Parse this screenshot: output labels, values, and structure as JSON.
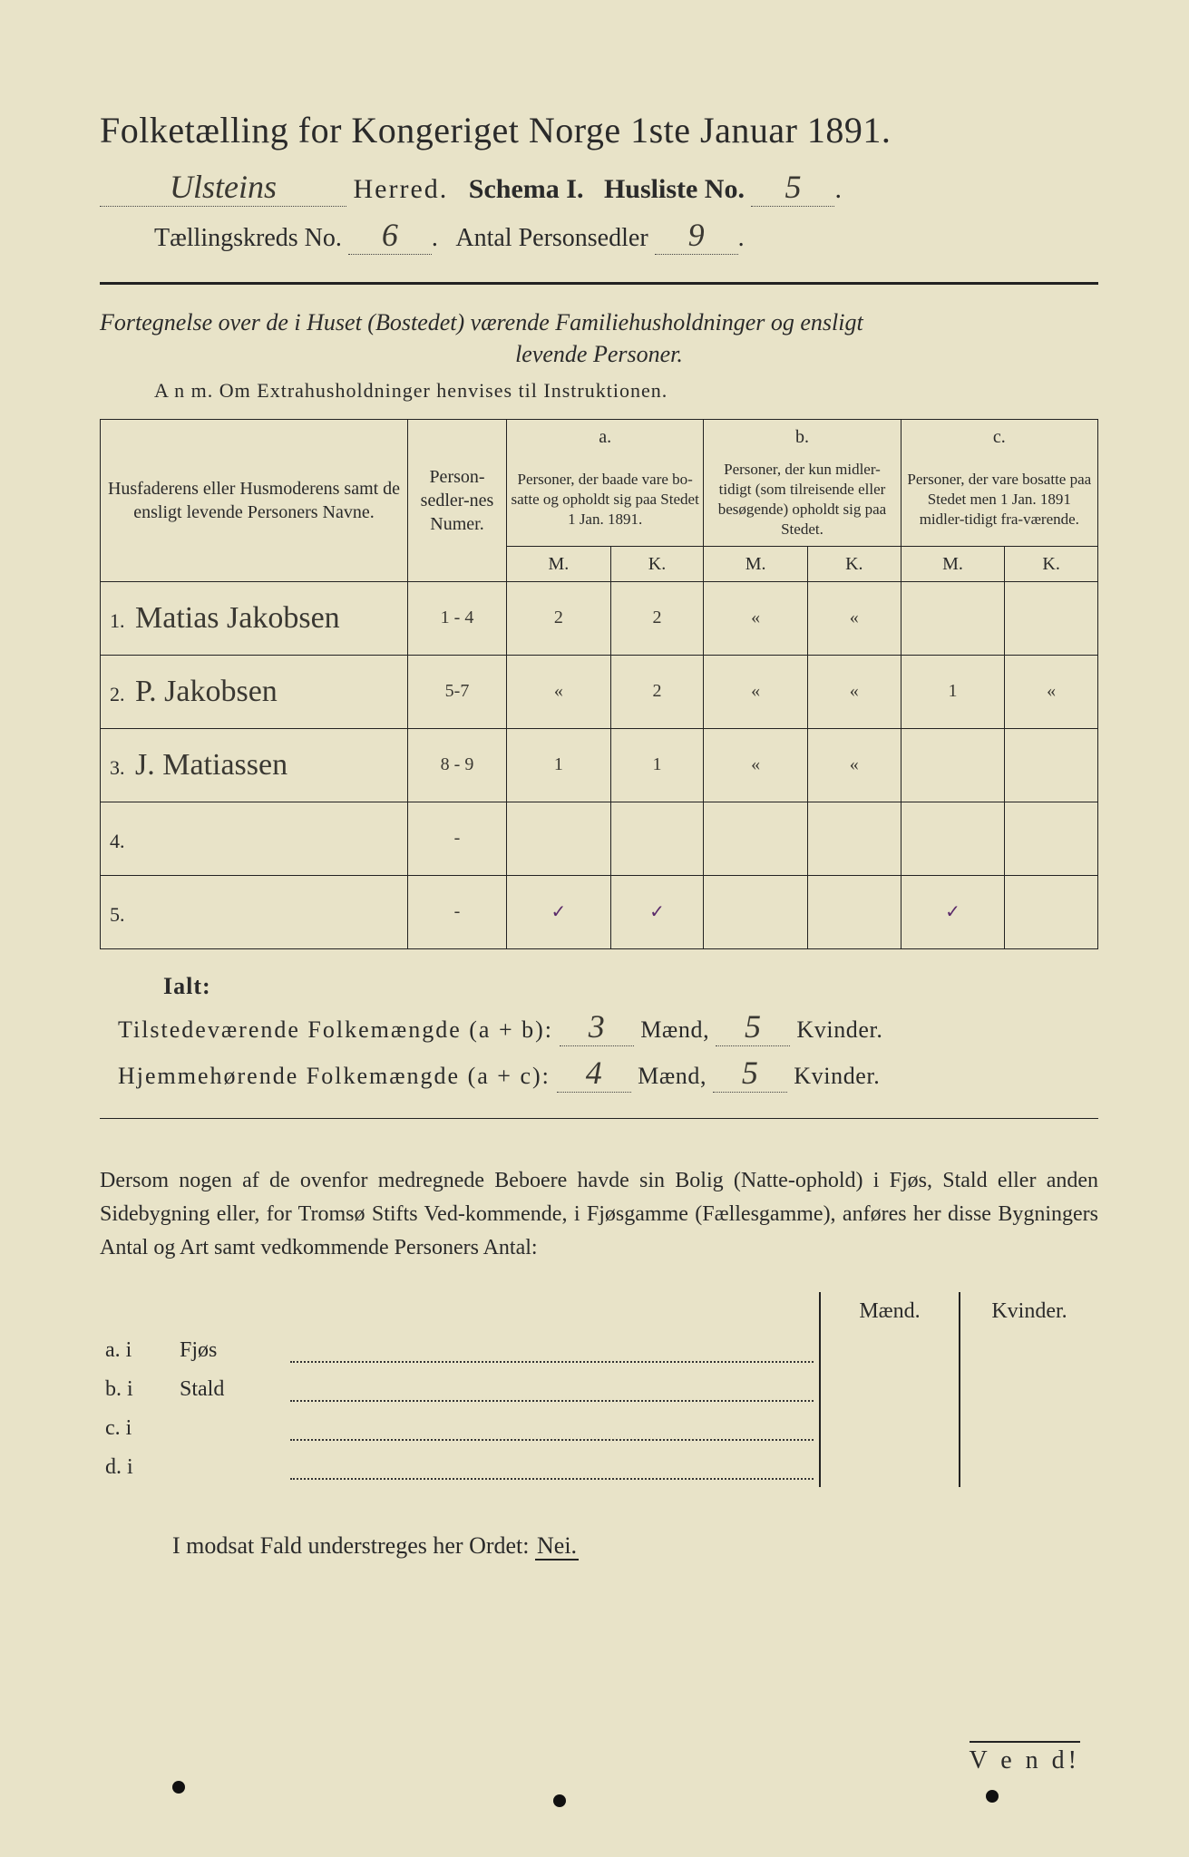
{
  "header": {
    "title": "Folketælling for Kongeriget Norge 1ste Januar 1891.",
    "herred_value": "Ulsteins",
    "herred_label": "Herred.",
    "schema_label": "Schema I.",
    "husliste_label": "Husliste No.",
    "husliste_no": "5",
    "kreds_label": "Tællingskreds No.",
    "kreds_no": "6",
    "personsedler_label": "Antal Personsedler",
    "personsedler_no": "9"
  },
  "fortegnelse": {
    "line1": "Fortegnelse over de i Huset (Bostedet) værende Familiehusholdninger og ensligt",
    "line2": "levende Personer.",
    "anm": "A n m.   Om Extrahusholdninger henvises til Instruktionen."
  },
  "table_head": {
    "col_name": "Husfaderens eller Husmoderens samt de ensligt levende Personers Navne.",
    "col_numer": "Person-sedler-nes Numer.",
    "a_top": "a.",
    "a_text": "Personer, der baade vare bo-satte og opholdt sig paa Stedet 1 Jan. 1891.",
    "b_top": "b.",
    "b_text": "Personer, der kun midler-tidigt (som tilreisende eller besøgende) opholdt sig paa Stedet.",
    "c_top": "c.",
    "c_text": "Personer, der vare bosatte paa Stedet men 1 Jan. 1891 midler-tidigt fra-værende.",
    "M": "M.",
    "K": "K."
  },
  "rows": [
    {
      "n": "1.",
      "name": "Matias Jakobsen",
      "num": "1 - 4",
      "aM": "2",
      "aK": "2",
      "bM": "«",
      "bK": "«",
      "cM": "",
      "cK": ""
    },
    {
      "n": "2.",
      "name": "P. Jakobsen",
      "num": "5-7",
      "aM": "«",
      "aK": "2",
      "bM": "«",
      "bK": "«",
      "cM": "1",
      "cK": "«"
    },
    {
      "n": "3.",
      "name": "J. Matiassen",
      "num": "8 - 9",
      "aM": "1",
      "aK": "1",
      "bM": "«",
      "bK": "«",
      "cM": "",
      "cK": ""
    },
    {
      "n": "4.",
      "name": "",
      "num": "-",
      "aM": "",
      "aK": "",
      "bM": "",
      "bK": "",
      "cM": "",
      "cK": ""
    },
    {
      "n": "5.",
      "name": "",
      "num": "-",
      "aM": "✓",
      "aK": "✓",
      "bM": "",
      "bK": "",
      "cM": "✓",
      "cK": ""
    }
  ],
  "ialt_label": "Ialt:",
  "summary": {
    "line1_a": "Tilstedeværende Folkemængde (a + b):",
    "line1_m": "3",
    "line1_k": "5",
    "line2_a": "Hjemmehørende Folkemængde (a + c):",
    "line2_m": "4",
    "line2_k": "5",
    "maend": "Mænd,",
    "kvinder": "Kvinder."
  },
  "paragraph": "Dersom nogen af de ovenfor medregnede Beboere havde sin Bolig (Natte-ophold) i Fjøs, Stald eller anden Sidebygning eller, for Tromsø Stifts Ved-kommende, i Fjøsgamme (Fællesgamme), anføres her disse Bygningers Antal og Art samt vedkommende Personers Antal:",
  "side": {
    "head_m": "Mænd.",
    "head_k": "Kvinder.",
    "rows": [
      {
        "pre": "a.  i",
        "label": "Fjøs"
      },
      {
        "pre": "b.  i",
        "label": "Stald"
      },
      {
        "pre": "c.  i",
        "label": ""
      },
      {
        "pre": "d.  i",
        "label": ""
      }
    ]
  },
  "modsat": "I modsat Fald understreges her Ordet:",
  "nei": "Nei.",
  "vend": "V e n d!",
  "colors": {
    "paper": "#e8e3c8",
    "ink": "#2a2a2a",
    "hand": "#3a3832",
    "tick": "#5a2a6a"
  }
}
